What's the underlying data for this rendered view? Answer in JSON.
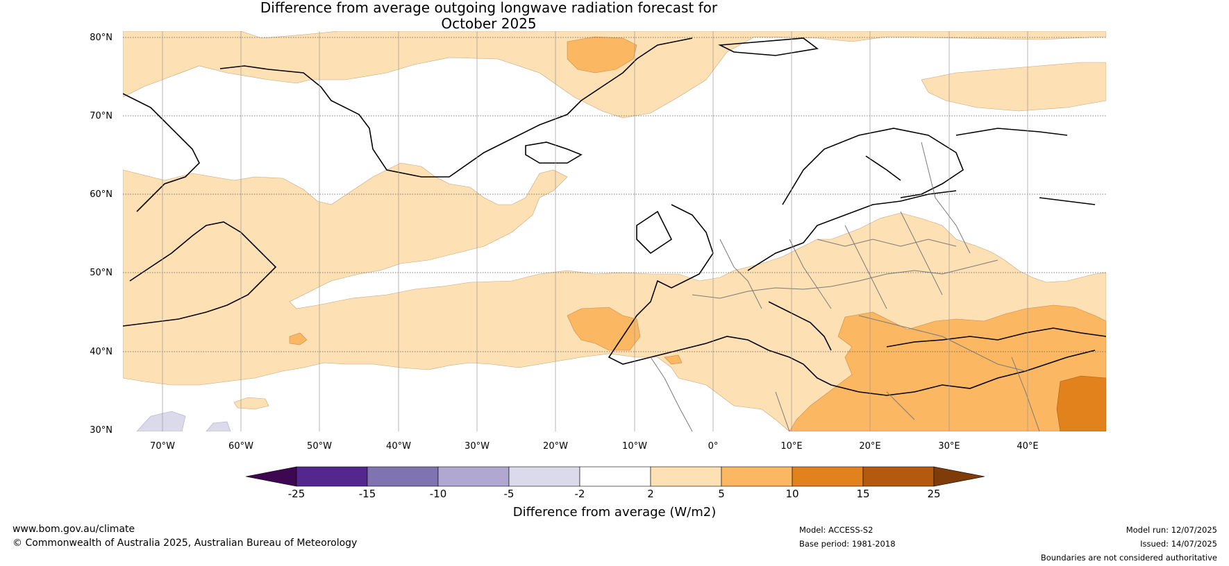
{
  "title": {
    "line1": "Difference from average outgoing longwave radiation forecast for",
    "line2": "October 2025"
  },
  "map": {
    "latitude_labels": [
      "80°N",
      "70°N",
      "60°N",
      "50°N",
      "40°N",
      "30°N"
    ],
    "longitude_labels": [
      "70°W",
      "60°W",
      "50°W",
      "40°W",
      "30°W",
      "20°W",
      "10°W",
      "0°",
      "10°E",
      "20°E",
      "30°E",
      "40°E"
    ],
    "extent": {
      "lon": [
        -75,
        50
      ],
      "lat": [
        30,
        81
      ]
    }
  },
  "colorbar": {
    "ticks": [
      "-25",
      "-15",
      "-10",
      "-5",
      "-2",
      "2",
      "5",
      "10",
      "15",
      "25"
    ],
    "colors": [
      "#3e0751",
      "#54278f",
      "#8073b1",
      "#b1a8d2",
      "#dadaeb",
      "#ffffff",
      "#fde0b4",
      "#fbb762",
      "#e1821d",
      "#b35a0f",
      "#7f3b08"
    ],
    "label": "Difference from average (W/m2)"
  },
  "footer": {
    "website": "www.bom.gov.au/climate",
    "copyright": "© Commonwealth of Australia 2025, Australian Bureau of Meteorology",
    "model": "Model: ACCESS-S2",
    "base_period": "Base period: 1981-2018",
    "model_run": "Model run: 12/07/2025",
    "issued": "Issued: 14/07/2025",
    "disclaimer": "Boundaries are not considered authoritative"
  }
}
